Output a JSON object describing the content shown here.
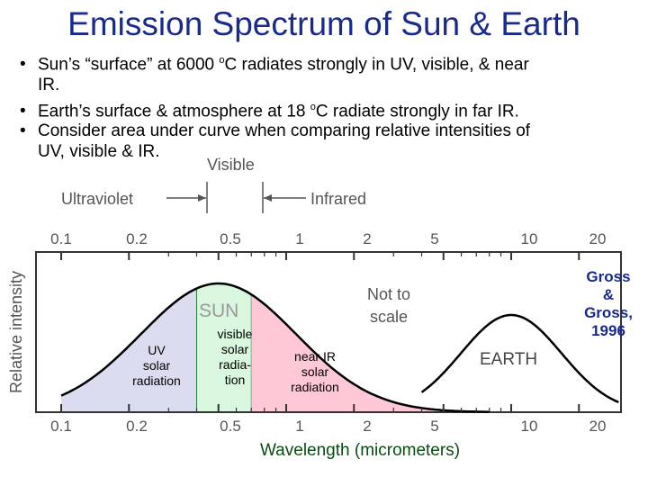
{
  "title": "Emission Spectrum of Sun & Earth",
  "bullets": [
    {
      "line1": "Sun’s “surface” at 6000 ",
      "sup": "o",
      "line1b": "C radiates strongly in UV, visible, &   near",
      "line2": "IR."
    },
    {
      "line1": "Earth’s surface & atmosphere at 18 ",
      "sup": "o",
      "line1b": "C radiate strongly in far IR."
    },
    {
      "line1": "Consider area under curve when comparing relative intensities of",
      "line2": "UV, visible & IR."
    }
  ],
  "bullet_glyph": "•",
  "figure": {
    "visible_label": "Visible",
    "ultraviolet_label": "Ultraviolet",
    "infrared_label": "Infrared",
    "y_axis_label": "Relative intensity",
    "top_ticks": [
      "0.1",
      "0.2",
      "0.5",
      "1",
      "2",
      "5",
      "10",
      "20"
    ],
    "bottom_ticks": [
      "0.1",
      "0.2",
      "0.5",
      "1",
      "2",
      "5",
      "10",
      "20"
    ],
    "sun_label": "SUN",
    "earth_label": "EARTH",
    "not_to_scale_line1": "Not to",
    "not_to_scale_line2": "scale",
    "x_axis_label": "Wavelength (micrometers)",
    "credit_lines": [
      "Gross",
      "&",
      "Gross,",
      "1996"
    ],
    "uv_label": [
      "UV",
      "solar",
      "radiation"
    ],
    "visible_band_label": [
      "visible",
      "solar",
      "radia-",
      "tion"
    ],
    "near_ir_label": [
      "near IR",
      "solar",
      "radiation"
    ]
  },
  "colors": {
    "title": "#1a2a8c",
    "uv_fill": "#dcdcf0",
    "visible_fill": "#d9f7de",
    "near_ir_fill": "#ffc8d6",
    "credit": "#1a2a8c",
    "xlabel": "#0a4a14"
  }
}
